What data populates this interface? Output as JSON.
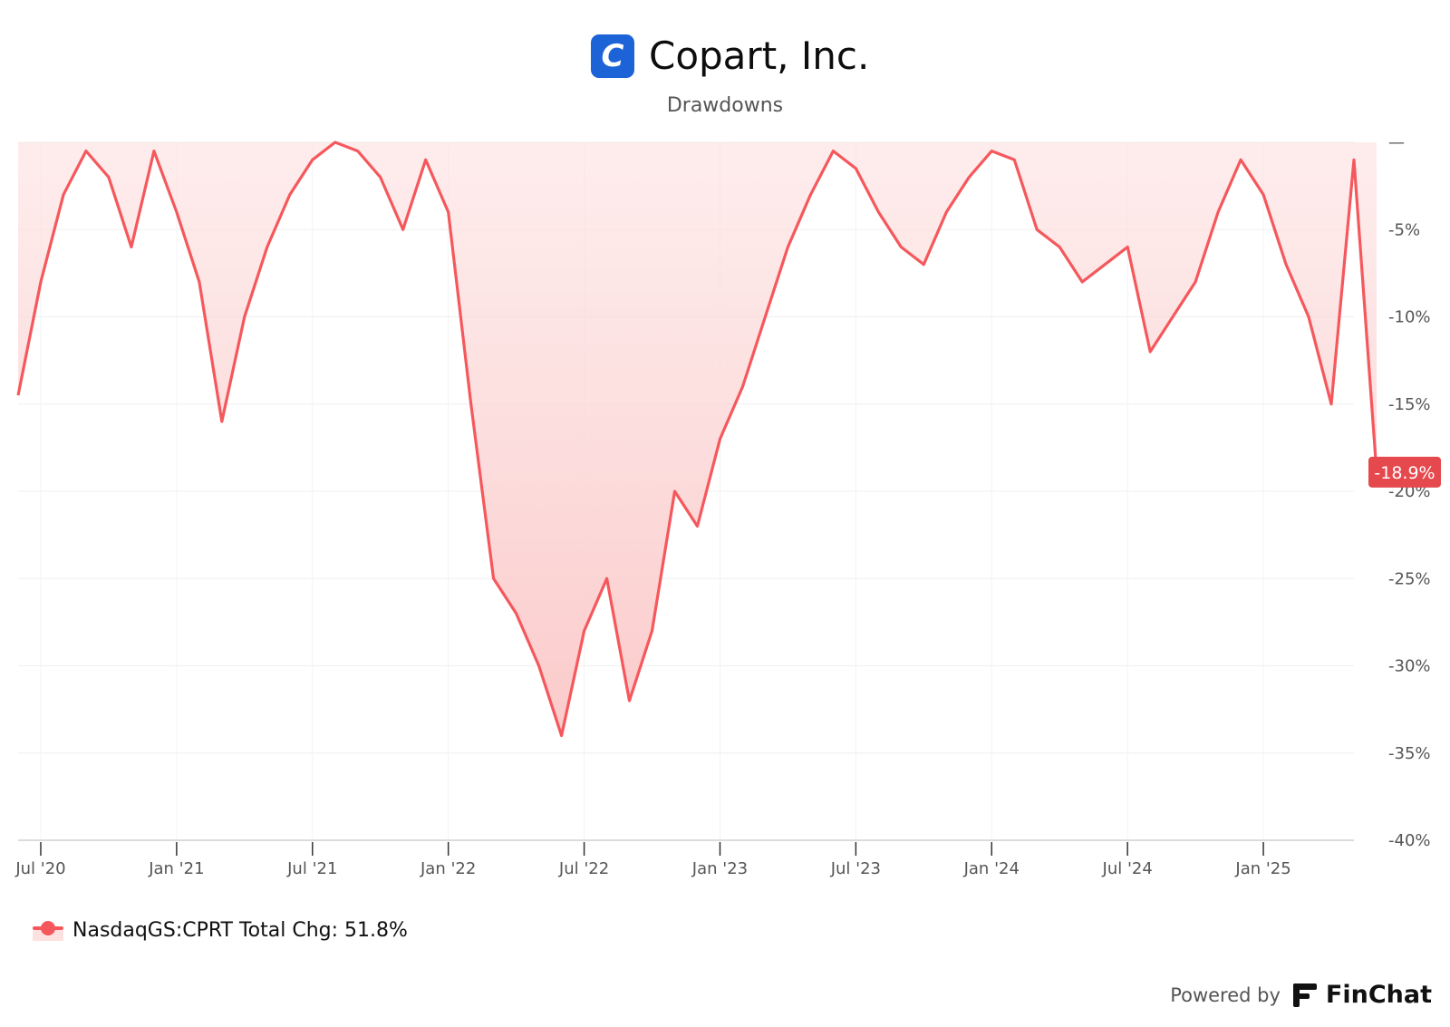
{
  "header": {
    "logo_letter": "C",
    "title": "Copart, Inc.",
    "subtitle": "Drawdowns"
  },
  "chart_data": {
    "type": "area",
    "title": "Copart, Inc.",
    "subtitle": "Drawdowns",
    "x_start": "2020-06",
    "x_end": "2025-05",
    "xticks": [
      "Jul '20",
      "Jan '21",
      "Jul '21",
      "Jan '22",
      "Jul '22",
      "Jan '23",
      "Jul '23",
      "Jan '24",
      "Jul '24",
      "Jan '25"
    ],
    "xtick_dates": [
      "2020-07",
      "2021-01",
      "2021-07",
      "2022-01",
      "2022-07",
      "2023-01",
      "2023-07",
      "2024-01",
      "2024-07",
      "2025-01"
    ],
    "yticks": [
      "—",
      "-5%",
      "-10%",
      "-15%",
      "-20%",
      "-25%",
      "-30%",
      "-35%",
      "-40%"
    ],
    "ylim": [
      -40,
      0
    ],
    "ytick_values": [
      0,
      -5,
      -10,
      -15,
      -20,
      -25,
      -30,
      -35,
      -40
    ],
    "grid": true,
    "line_color": "#f5585c",
    "area_color": "#fde0e0",
    "last_value_label": "-18.9%",
    "series": [
      {
        "name": "NasdaqGS:CPRT",
        "x": [
          "2020-06",
          "2020-07",
          "2020-08",
          "2020-09",
          "2020-10",
          "2020-11",
          "2020-12",
          "2021-01",
          "2021-02",
          "2021-03",
          "2021-04",
          "2021-05",
          "2021-06",
          "2021-07",
          "2021-08",
          "2021-09",
          "2021-10",
          "2021-11",
          "2021-12",
          "2022-01",
          "2022-02",
          "2022-03",
          "2022-04",
          "2022-05",
          "2022-06",
          "2022-07",
          "2022-08",
          "2022-09",
          "2022-10",
          "2022-11",
          "2022-12",
          "2023-01",
          "2023-02",
          "2023-03",
          "2023-04",
          "2023-05",
          "2023-06",
          "2023-07",
          "2023-08",
          "2023-09",
          "2023-10",
          "2023-11",
          "2023-12",
          "2024-01",
          "2024-02",
          "2024-03",
          "2024-04",
          "2024-05",
          "2024-06",
          "2024-07",
          "2024-08",
          "2024-09",
          "2024-10",
          "2024-11",
          "2024-12",
          "2025-01",
          "2025-02",
          "2025-03",
          "2025-04",
          "2025-05",
          "2025-06"
        ],
        "values": [
          -14.5,
          -8,
          -3,
          -0.5,
          -2,
          -6,
          -0.5,
          -4,
          -8,
          -16,
          -10,
          -6,
          -3,
          -1,
          0,
          -0.5,
          -2,
          -5,
          -1,
          -4,
          -15,
          -25,
          -27,
          -30,
          -34,
          -28,
          -25,
          -32,
          -28,
          -20,
          -22,
          -17,
          -14,
          -10,
          -6,
          -3,
          -0.5,
          -1.5,
          -4,
          -6,
          -7,
          -4,
          -2,
          -0.5,
          -1,
          -5,
          -6,
          -8,
          -7,
          -6,
          -12,
          -10,
          -8,
          -4,
          -1,
          -3,
          -7,
          -10,
          -15,
          -1,
          -18.9
        ]
      }
    ],
    "legend": "NasdaqGS:CPRT Total Chg: 51.8%",
    "legend_position": "bottom-left"
  },
  "footer": {
    "powered_by": "Powered by",
    "brand": "FinChat"
  }
}
